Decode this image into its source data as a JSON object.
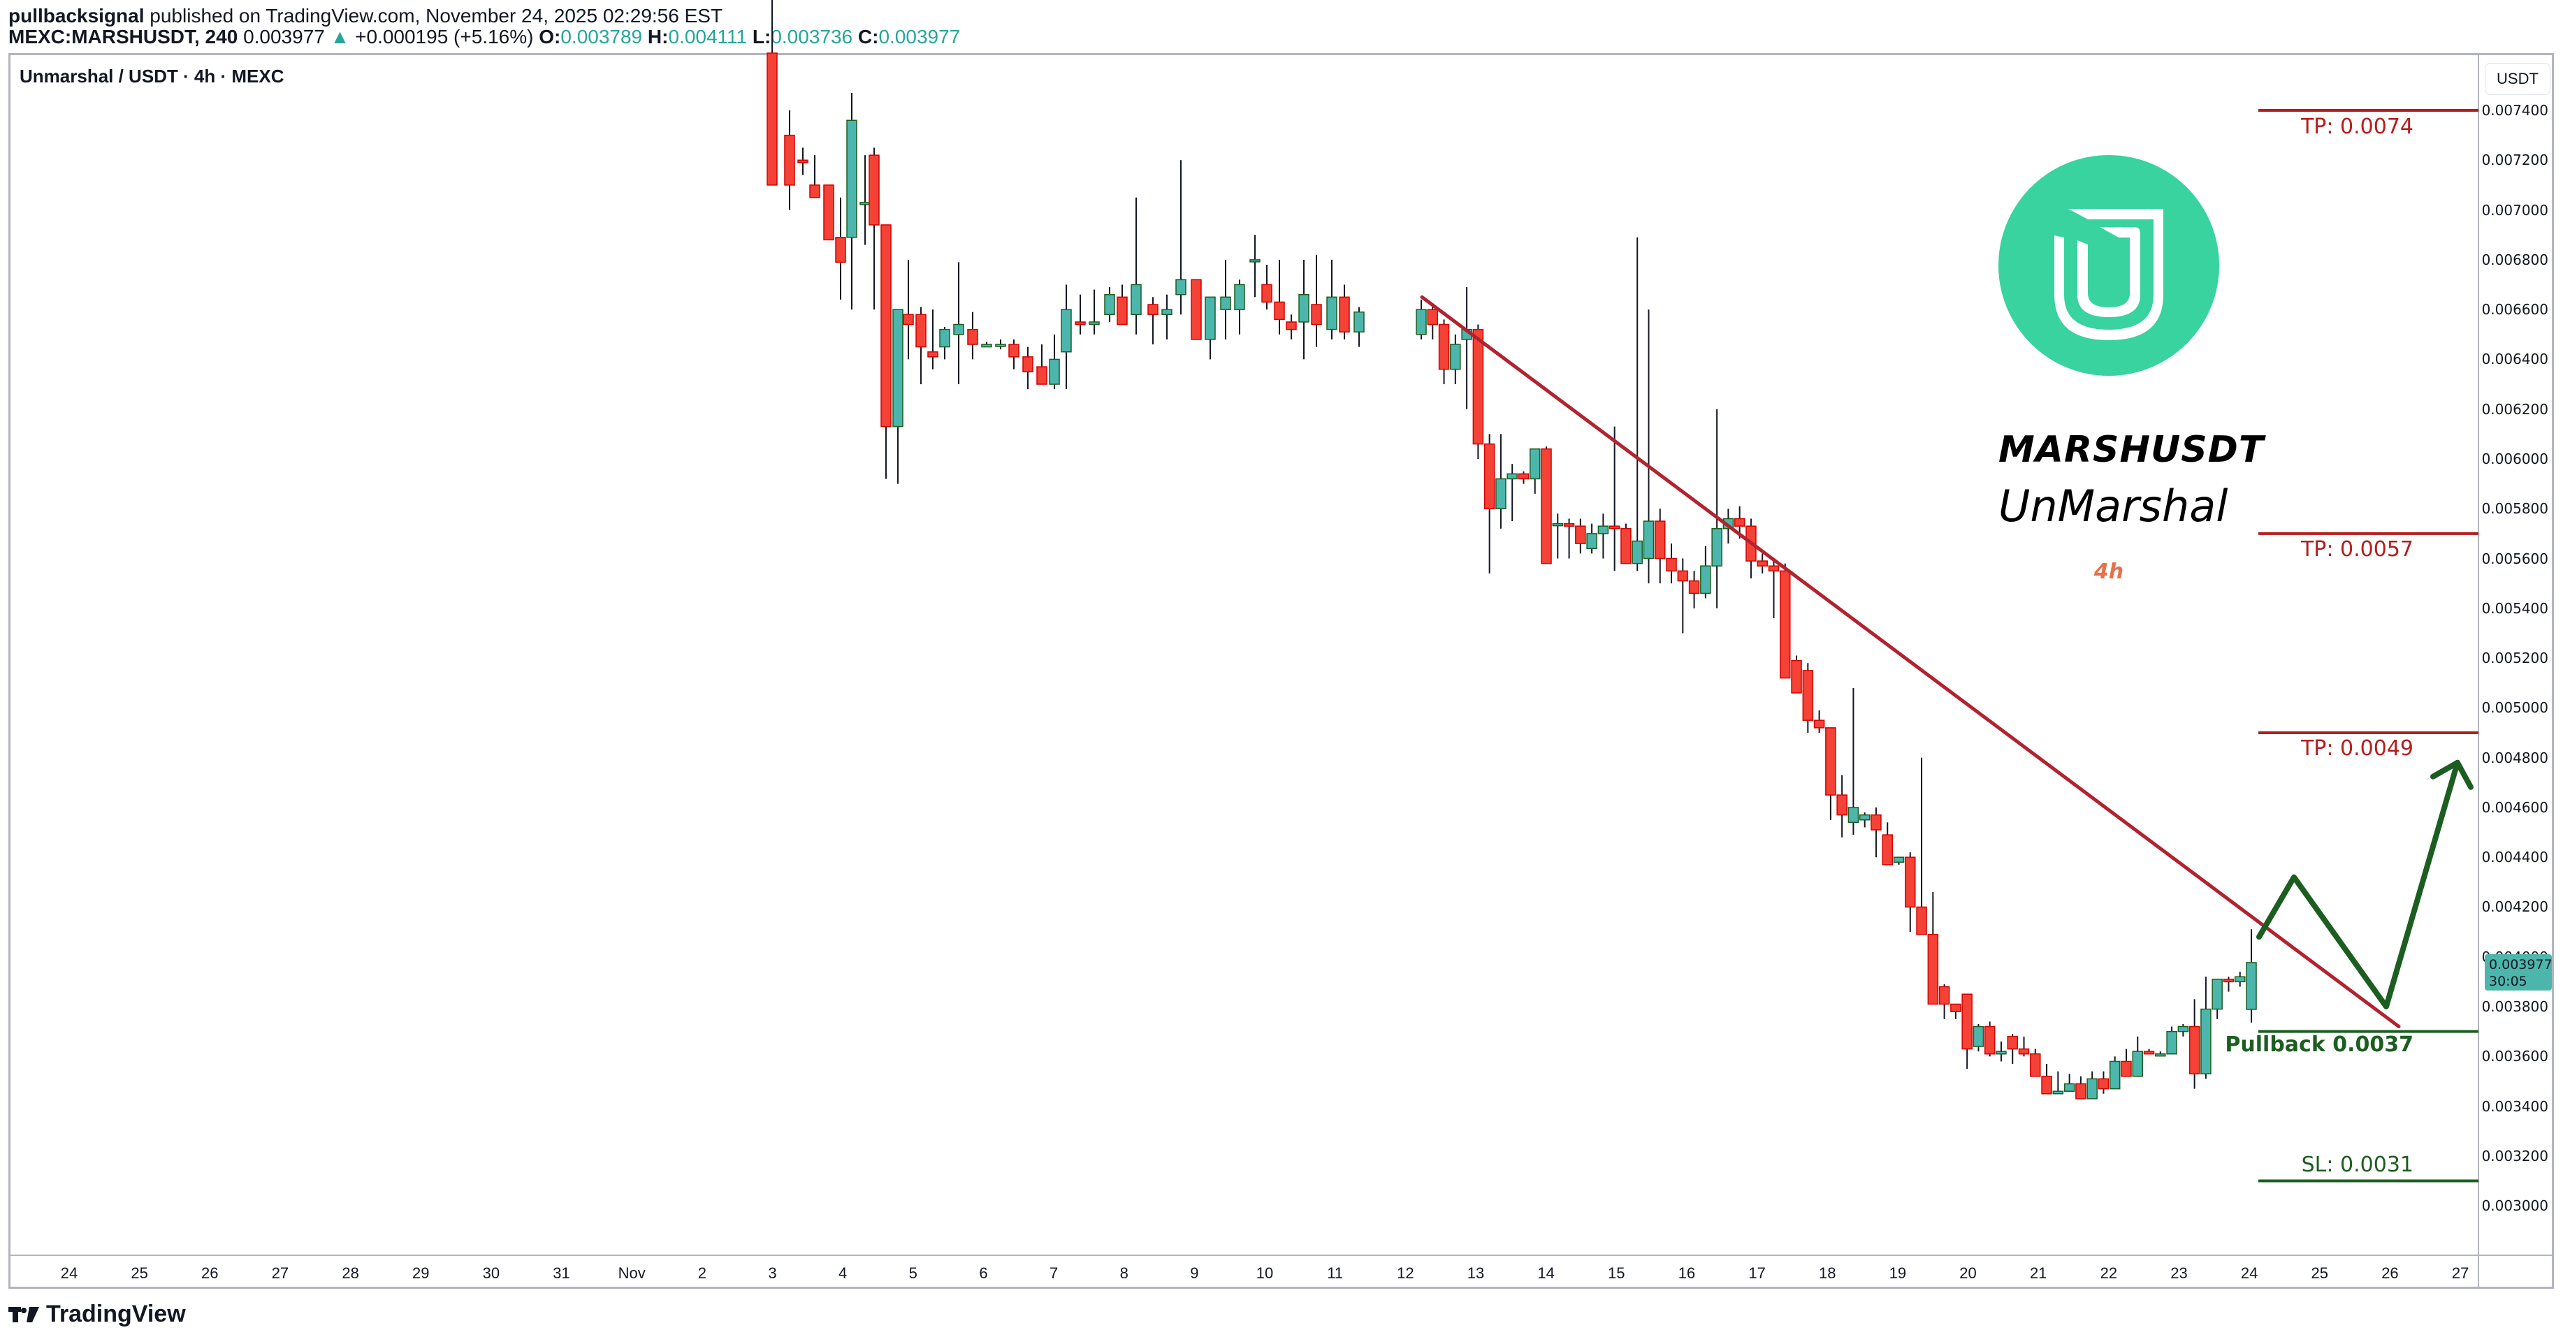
{
  "header": {
    "author": "pullbacksignal",
    "published_text": " published on TradingView.com, November 24, 2025 02:29:56 EST",
    "symbol": "MEXC:MARSHUSDT, 240",
    "last": "0.003977",
    "change_arrow": "▲",
    "change": "+0.000195 (+5.16%)",
    "o_label": "O:",
    "o": "0.003789",
    "h_label": "H:",
    "h": "0.004111",
    "l_label": "L:",
    "l": "0.003736",
    "c_label": "C:",
    "c": "0.003977"
  },
  "legend": {
    "title": "Unmarshal / USDT · 4h · MEXC"
  },
  "brand": {
    "ticker": "MARSHUSDT",
    "name": "UnMarshal",
    "timeframe": "4h"
  },
  "price_axis": {
    "currency": "USDT",
    "ticks": [
      "0.007400",
      "0.007200",
      "0.007000",
      "0.006800",
      "0.006600",
      "0.006400",
      "0.006200",
      "0.006000",
      "0.005800",
      "0.005600",
      "0.005400",
      "0.005200",
      "0.005000",
      "0.004800",
      "0.004600",
      "0.004400",
      "0.004200",
      "0.004000",
      "0.003800",
      "0.003600",
      "0.003400",
      "0.003200",
      "0.003000"
    ],
    "current_price": "0.003977",
    "countdown": "30:05"
  },
  "time_axis": {
    "labels": [
      "24",
      "25",
      "26",
      "27",
      "28",
      "29",
      "30",
      "31",
      "Nov",
      "2",
      "3",
      "4",
      "5",
      "6",
      "7",
      "8",
      "9",
      "10",
      "11",
      "12",
      "13",
      "14",
      "15",
      "16",
      "17",
      "18",
      "19",
      "20",
      "21",
      "22",
      "23",
      "24",
      "25",
      "26",
      "27"
    ]
  },
  "levels": [
    {
      "label": "TP: 0.0074",
      "price": 0.0074,
      "color": "#b71c1c"
    },
    {
      "label": "TP: 0.0057",
      "price": 0.0057,
      "color": "#b71c1c"
    },
    {
      "label": "TP: 0.0049",
      "price": 0.0049,
      "color": "#b71c1c"
    },
    {
      "label": "Pullback 0.0037",
      "price": 0.0037,
      "color": "#1b5e20"
    },
    {
      "label": "SL: 0.0031",
      "price": 0.0031,
      "color": "#1b5e20"
    }
  ],
  "footer": {
    "logo_text": "TradingView"
  },
  "colors": {
    "up": "#4db6ac",
    "up_border": "#1b5e20",
    "down": "#f44336",
    "down_border": "#d50000",
    "trendline": "#b2222f",
    "projection": "#1b5e20",
    "brand_green": "#38d39f"
  },
  "chart_data": {
    "type": "candlestick",
    "title": "Unmarshal / USDT · 4h · MEXC",
    "xlabel": "",
    "ylabel": "USDT",
    "ylim": [
      0.0029,
      0.0075
    ],
    "x_range": [
      "Oct 24",
      "Nov 27"
    ],
    "grid": false,
    "annotations": [
      {
        "type": "hline",
        "label": "TP: 0.0074",
        "y": 0.0074
      },
      {
        "type": "hline",
        "label": "TP: 0.0057",
        "y": 0.0057
      },
      {
        "type": "hline",
        "label": "TP: 0.0049",
        "y": 0.0049
      },
      {
        "type": "hline",
        "label": "Pullback 0.0037",
        "y": 0.0037
      },
      {
        "type": "hline",
        "label": "SL: 0.0031",
        "y": 0.0031
      },
      {
        "type": "trendline",
        "from": {
          "date": "Nov 12",
          "y": 0.00665
        },
        "to": {
          "date": "Nov 26",
          "y": 0.00372
        }
      },
      {
        "type": "projection-arrow",
        "points": [
          {
            "date": "Nov 24.3",
            "y": 0.00408
          },
          {
            "date": "Nov 24.9",
            "y": 0.00432
          },
          {
            "date": "Nov 26.1",
            "y": 0.0038
          },
          {
            "date": "Nov 27.2",
            "y": 0.00478
          }
        ]
      }
    ],
    "last_candle": {
      "open": 0.003789,
      "high": 0.004111,
      "low": 0.003736,
      "close": 0.003977,
      "change": 0.000195,
      "change_pct": 5.16
    },
    "candles": [
      [
        0.0065,
        0.00664,
        0.00648,
        0.0066
      ],
      [
        0.0066,
        0.00662,
        0.00648,
        0.00654
      ],
      [
        0.00654,
        0.00656,
        0.0063,
        0.00636
      ],
      [
        0.00636,
        0.0065,
        0.0063,
        0.00646
      ],
      [
        0.00648,
        0.00669,
        0.0062,
        0.00652
      ],
      [
        0.00652,
        0.00654,
        0.006,
        0.00606
      ],
      [
        0.00606,
        0.0061,
        0.00554,
        0.0058
      ],
      [
        0.0058,
        0.0061,
        0.00572,
        0.00592
      ],
      [
        0.00592,
        0.00598,
        0.00575,
        0.00594
      ],
      [
        0.00594,
        0.00595,
        0.0059,
        0.00592
      ],
      [
        0.00592,
        0.00601,
        0.00586,
        0.00604
      ],
      [
        0.00604,
        0.00605,
        0.0056,
        0.00558
      ],
      [
        0.00574,
        0.00578,
        0.0056,
        0.00574
      ],
      [
        0.00574,
        0.00576,
        0.0056,
        0.00573
      ],
      [
        0.00573,
        0.00576,
        0.00562,
        0.00566
      ],
      [
        0.00564,
        0.00574,
        0.00562,
        0.0057
      ],
      [
        0.0057,
        0.00578,
        0.0056,
        0.00573
      ],
      [
        0.00573,
        0.00613,
        0.00555,
        0.00572
      ],
      [
        0.00572,
        0.00574,
        0.00558,
        0.00558
      ],
      [
        0.00558,
        0.00689,
        0.00555,
        0.00567
      ],
      [
        0.0056,
        0.0066,
        0.0055,
        0.00575
      ],
      [
        0.00575,
        0.0058,
        0.0055,
        0.0056
      ],
      [
        0.0056,
        0.00566,
        0.0055,
        0.00555
      ],
      [
        0.00555,
        0.0056,
        0.0053,
        0.00551
      ],
      [
        0.00551,
        0.00555,
        0.0054,
        0.00546
      ],
      [
        0.00546,
        0.00565,
        0.00544,
        0.00557
      ],
      [
        0.00557,
        0.0062,
        0.0054,
        0.00572
      ],
      [
        0.00572,
        0.0058,
        0.00566,
        0.00576
      ],
      [
        0.00576,
        0.00581,
        0.00568,
        0.00573
      ],
      [
        0.00573,
        0.00576,
        0.00552,
        0.00559
      ],
      [
        0.00559,
        0.00562,
        0.00554,
        0.00557
      ],
      [
        0.00557,
        0.0056,
        0.00536,
        0.00555
      ],
      [
        0.00555,
        0.00558,
        0.00519,
        0.00512
      ],
      [
        0.00519,
        0.00521,
        0.0051,
        0.00506
      ],
      [
        0.00515,
        0.00518,
        0.0049,
        0.00495
      ],
      [
        0.00495,
        0.00499,
        0.0049,
        0.00492
      ],
      [
        0.00492,
        0.00492,
        0.00455,
        0.00465
      ],
      [
        0.00465,
        0.00473,
        0.00448,
        0.00457
      ],
      [
        0.00454,
        0.00508,
        0.00449,
        0.0046
      ],
      [
        0.00455,
        0.00458,
        0.00452,
        0.00457
      ],
      [
        0.00457,
        0.0046,
        0.0044,
        0.00451
      ],
      [
        0.00449,
        0.00454,
        0.00437,
        0.00437
      ],
      [
        0.00438,
        0.0044,
        0.00437,
        0.0044
      ],
      [
        0.0044,
        0.00442,
        0.0041,
        0.0042
      ],
      [
        0.0042,
        0.0048,
        0.00414,
        0.00409
      ],
      [
        0.00409,
        0.00426,
        0.00389,
        0.00381
      ],
      [
        0.00388,
        0.00389,
        0.00375,
        0.00381
      ],
      [
        0.00381,
        0.00381,
        0.00375,
        0.00378
      ],
      [
        0.00385,
        0.00385,
        0.00355,
        0.00363
      ],
      [
        0.00364,
        0.00373,
        0.00362,
        0.00372
      ],
      [
        0.00372,
        0.00374,
        0.0036,
        0.00361
      ],
      [
        0.00361,
        0.00366,
        0.00358,
        0.00362
      ],
      [
        0.00368,
        0.00369,
        0.00357,
        0.00363
      ],
      [
        0.00363,
        0.00368,
        0.0036,
        0.00361
      ],
      [
        0.00361,
        0.00363,
        0.00352,
        0.00352
      ],
      [
        0.00352,
        0.00357,
        0.0035,
        0.00345
      ],
      [
        0.00345,
        0.00354,
        0.00348,
        0.00346
      ],
      [
        0.00346,
        0.00353,
        0.00347,
        0.00349
      ],
      [
        0.00349,
        0.00352,
        0.00345,
        0.00343
      ],
      [
        0.00343,
        0.00354,
        0.00344,
        0.00351
      ],
      [
        0.00351,
        0.00354,
        0.00345,
        0.00347
      ],
      [
        0.00347,
        0.0036,
        0.00348,
        0.00358
      ],
      [
        0.00358,
        0.00363,
        0.00352,
        0.00352
      ],
      [
        0.00352,
        0.00368,
        0.00353,
        0.00362
      ],
      [
        0.00362,
        0.00363,
        0.00361,
        0.00361
      ],
      [
        0.00361,
        0.00362,
        0.0036,
        0.00361
      ],
      [
        0.00361,
        0.00372,
        0.00362,
        0.0037
      ],
      [
        0.0037,
        0.00373,
        0.00368,
        0.00372
      ],
      [
        0.00372,
        0.00383,
        0.00347,
        0.00353
      ],
      [
        0.00353,
        0.00392,
        0.00351,
        0.00379
      ],
      [
        0.00379,
        0.00391,
        0.00375,
        0.00391
      ],
      [
        0.00391,
        0.00392,
        0.00386,
        0.0039
      ],
      [
        0.0039,
        0.00394,
        0.00388,
        0.00392
      ],
      [
        0.003789,
        0.004111,
        0.003736,
        0.003977
      ]
    ]
  }
}
